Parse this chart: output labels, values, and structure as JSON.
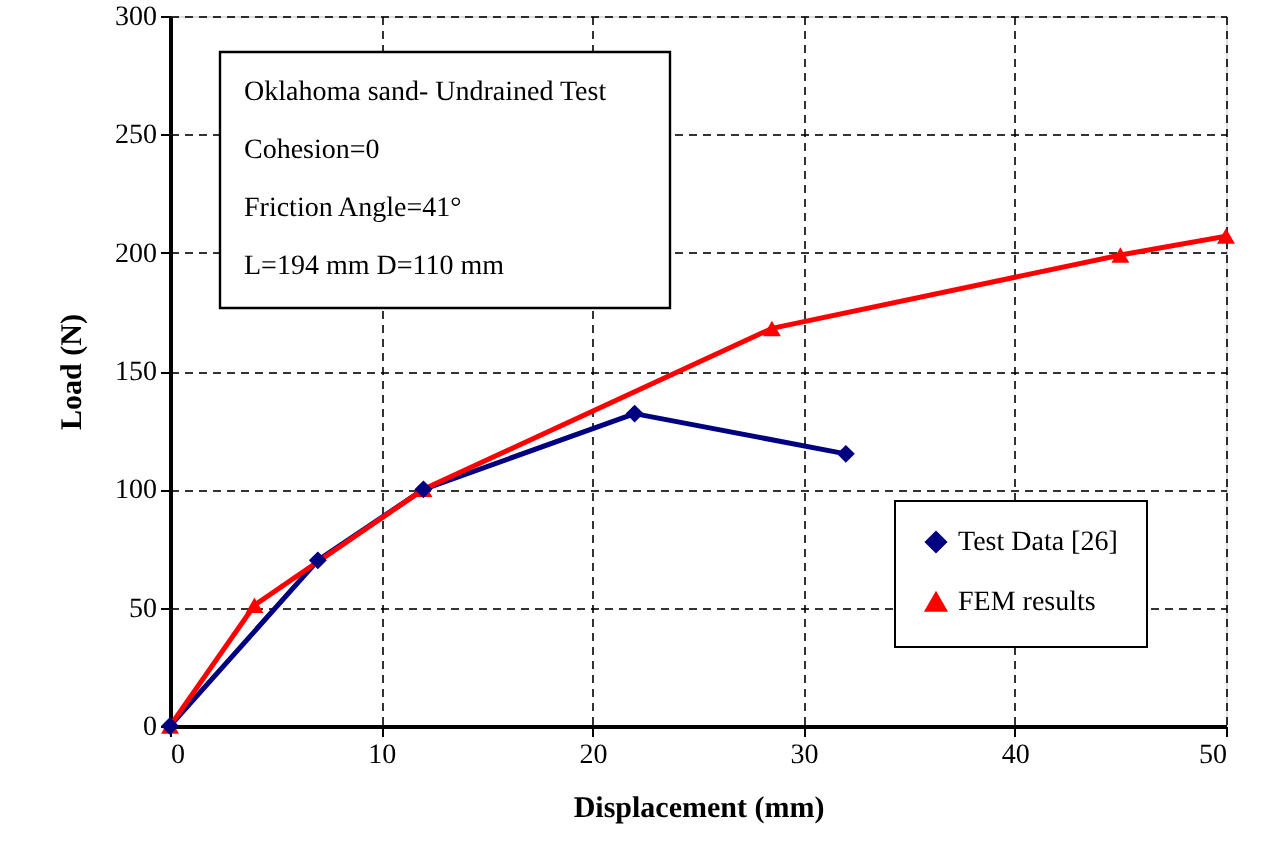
{
  "chart_data": {
    "type": "line",
    "xlabel": "Displacement (mm)",
    "ylabel": "Load (N)",
    "xlim": [
      0,
      50
    ],
    "xticks": [
      0,
      10,
      20,
      30,
      40,
      50
    ],
    "ylim": [
      0,
      300
    ],
    "yticks": [
      0,
      50,
      100,
      150,
      200,
      250,
      300
    ],
    "grid": true,
    "legend": "bottom right",
    "line_style": "solid",
    "annotations": [
      "Oklahoma sand- Undrained Test",
      "Cohesion=0",
      "Friction Angle=41°",
      "L=194 mm      D=110 mm"
    ],
    "series": [
      {
        "name": "Test Data [26]",
        "color": "#000080",
        "marker": "diamond",
        "x": [
          0,
          7,
          12,
          22,
          32
        ],
        "values": [
          0,
          70,
          100,
          132,
          115
        ]
      },
      {
        "name": "FEM results",
        "color": "#ff0000",
        "marker": "triangle",
        "x": [
          0,
          4,
          12,
          28.5,
          45,
          50
        ],
        "values": [
          0,
          51,
          100,
          168,
          199,
          207
        ]
      }
    ]
  }
}
